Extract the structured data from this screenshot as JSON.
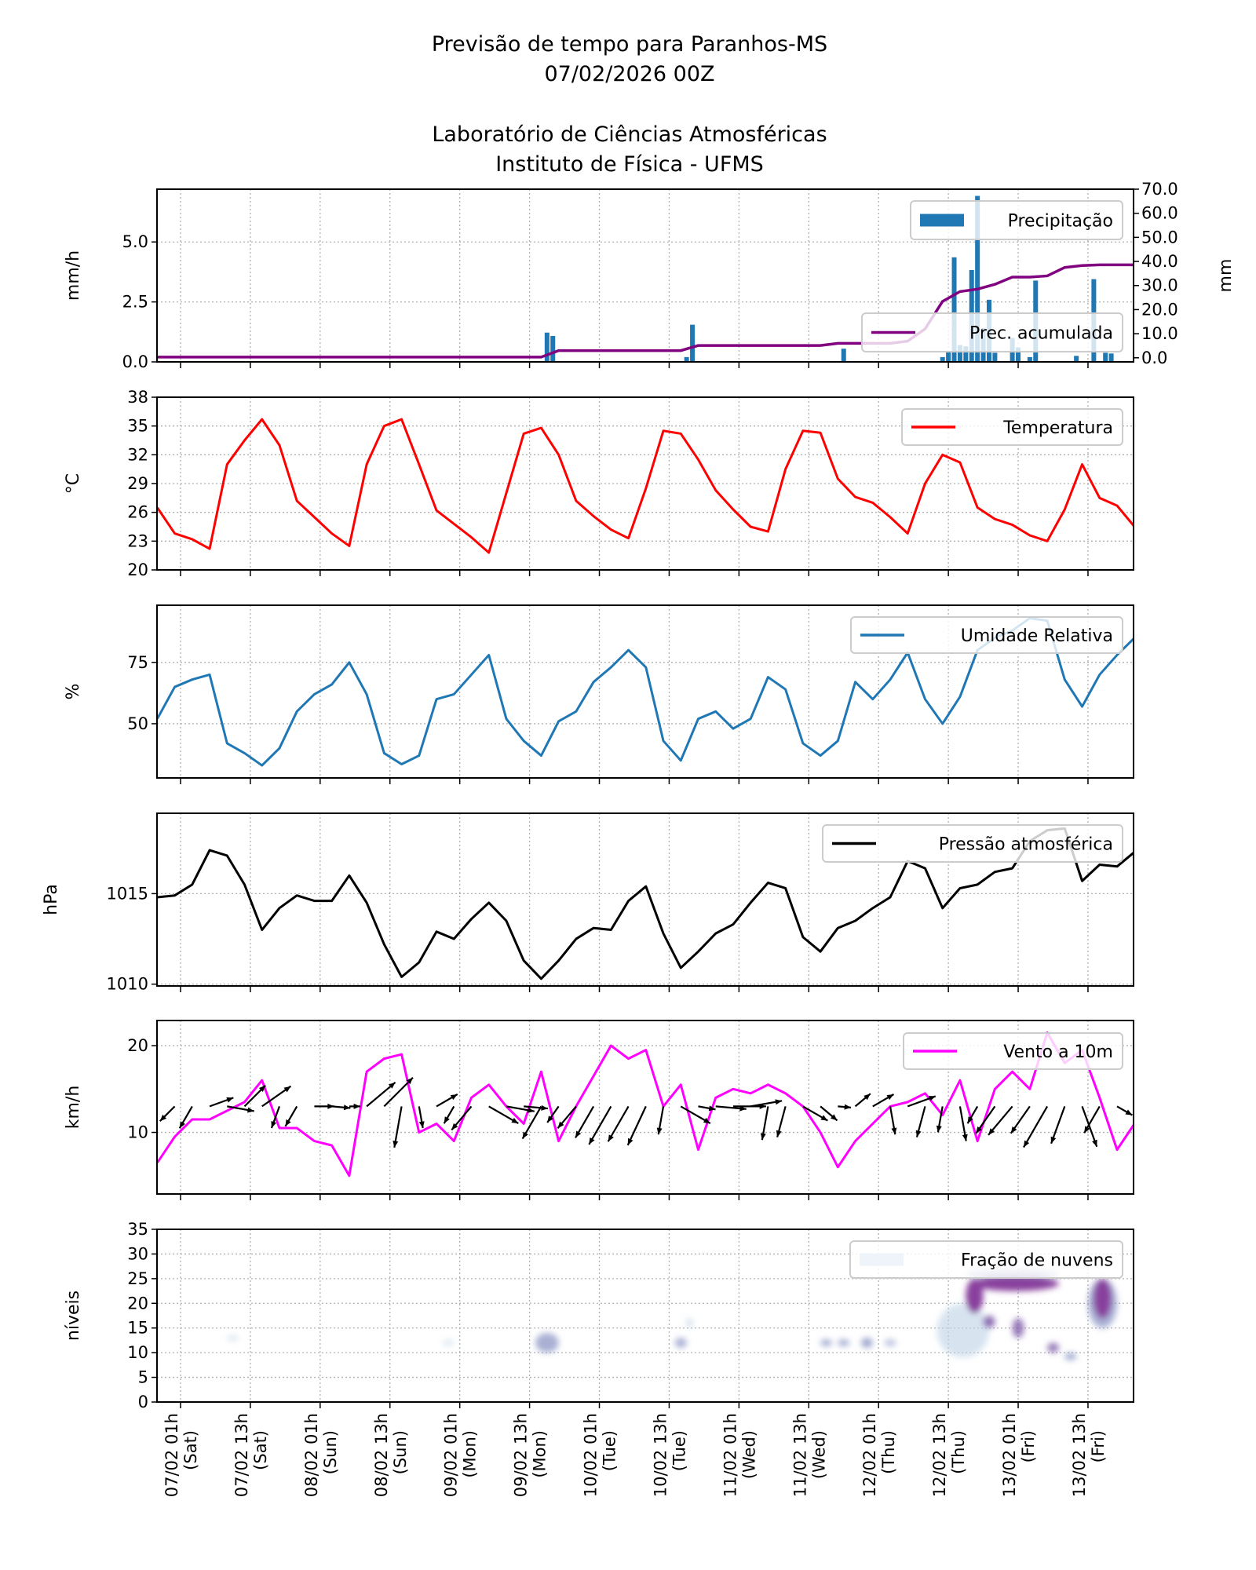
{
  "titles": [
    "Previsão de tempo para Paranhos-MS",
    "07/02/2026 00Z",
    "Laboratório de Ciências Atmosféricas",
    "Instituto de Física - UFMS"
  ],
  "chart_data": [
    {
      "type": "bar",
      "ylabel": "mm/h",
      "ylabel_right": "mm",
      "ylim": [
        0,
        7.2
      ],
      "ylim_right": [
        -1.7,
        70
      ],
      "yticks": [
        "0.0",
        "2.5",
        "5.0"
      ],
      "yticks_right": [
        "0.0",
        "10.0",
        "20.0",
        "30.0",
        "40.0",
        "50.0",
        "60.0",
        "70.0"
      ],
      "grid": true,
      "legend_placement": "upper-right",
      "series": [
        {
          "name": "Precipitação",
          "color": "#1f77b4",
          "kind": "bar",
          "points": [
            {
              "t": "09/02 16h",
              "v": 1.22
            },
            {
              "t": "09/02 17h",
              "v": 1.08
            },
            {
              "t": "10/02 16h",
              "v": 0.2
            },
            {
              "t": "10/02 17h",
              "v": 1.55
            },
            {
              "t": "11/02 19h",
              "v": 0.55
            },
            {
              "t": "12/02 12h",
              "v": 0.2
            },
            {
              "t": "12/02 13h",
              "v": 0.4
            },
            {
              "t": "12/02 14h",
              "v": 4.36
            },
            {
              "t": "12/02 15h",
              "v": 0.7
            },
            {
              "t": "12/02 16h",
              "v": 0.65
            },
            {
              "t": "12/02 17h",
              "v": 3.83
            },
            {
              "t": "12/02 18h",
              "v": 6.92
            },
            {
              "t": "12/02 19h",
              "v": 1.41
            },
            {
              "t": "12/02 20h",
              "v": 2.59
            },
            {
              "t": "12/02 21h",
              "v": 0.38
            },
            {
              "t": "13/02 00h",
              "v": 1.0
            },
            {
              "t": "13/02 01h",
              "v": 0.6
            },
            {
              "t": "13/02 03h",
              "v": 0.2
            },
            {
              "t": "13/02 04h",
              "v": 3.39
            },
            {
              "t": "13/02 11h",
              "v": 0.25
            },
            {
              "t": "13/02 14h",
              "v": 3.45
            },
            {
              "t": "13/02 16h",
              "v": 0.38
            },
            {
              "t": "13/02 17h",
              "v": 0.35
            }
          ]
        },
        {
          "name": "Prec. acumulada",
          "color": "#800080",
          "kind": "line",
          "axis": "right",
          "values": [
            0.3,
            0.3,
            0.3,
            0.3,
            0.3,
            0.3,
            0.3,
            0.3,
            0.3,
            0.3,
            0.3,
            0.3,
            0.3,
            0.3,
            0.3,
            0.3,
            0.3,
            0.3,
            0.3,
            0.3,
            0.3,
            0.3,
            0.3,
            3.0,
            3.0,
            3.0,
            3.0,
            3.0,
            3.0,
            3.0,
            3.0,
            5.1,
            5.1,
            5.1,
            5.1,
            5.1,
            5.1,
            5.1,
            5.1,
            6.0,
            6.0,
            6.0,
            6.0,
            6.9,
            12.0,
            23.4,
            27.5,
            28.5,
            30.5,
            33.5,
            33.5,
            34.0,
            37.5,
            38.3,
            38.6,
            38.6,
            38.6
          ]
        }
      ]
    },
    {
      "type": "line",
      "ylabel": "°C",
      "ylim": [
        20,
        38
      ],
      "yticks": [
        "20",
        "23",
        "26",
        "29",
        "32",
        "35",
        "38"
      ],
      "grid": true,
      "legend_placement": "upper-right",
      "series": [
        {
          "name": "Temperatura",
          "color": "#ff0000",
          "values": [
            26.5,
            23.8,
            23.2,
            22.2,
            31,
            33.5,
            35.7,
            33,
            27.2,
            25.5,
            23.8,
            22.5,
            31,
            35,
            35.7,
            31,
            26.2,
            24.8,
            23.4,
            21.8,
            28,
            34.2,
            34.8,
            32,
            27.2,
            25.6,
            24.2,
            23.3,
            28.5,
            34.5,
            34.2,
            31.5,
            28.3,
            26.3,
            24.5,
            24,
            30.5,
            34.5,
            34.3,
            29.5,
            27.6,
            27,
            25.5,
            23.8,
            29,
            32,
            31.2,
            26.5,
            25.3,
            24.7,
            23.6,
            23,
            26.3,
            31,
            27.5,
            26.7,
            24.5
          ]
        }
      ]
    },
    {
      "type": "line",
      "ylabel": "%",
      "ylim": [
        27.9,
        98.3
      ],
      "yticks": [
        "50",
        "75"
      ],
      "grid": true,
      "legend_placement": "upper-right",
      "series": [
        {
          "name": "Umidade Relativa",
          "color": "#1f77b4",
          "values": [
            52,
            65,
            68,
            70,
            42,
            38,
            33,
            40,
            55,
            62,
            66,
            75,
            62,
            38,
            33.5,
            37,
            60,
            62,
            70,
            78,
            52,
            43,
            37,
            51,
            55,
            67,
            73,
            80,
            73,
            43,
            35,
            52,
            55,
            48,
            52,
            69,
            64,
            42,
            37,
            43,
            67,
            60,
            68,
            79,
            60,
            50,
            61,
            80,
            85,
            88,
            93,
            92,
            68,
            57,
            70,
            78,
            85
          ]
        }
      ]
    },
    {
      "type": "line",
      "ylabel": "hPa",
      "ylim": [
        1009.9,
        1019.44
      ],
      "yticks": [
        "1010",
        "1015"
      ],
      "grid": true,
      "legend_placement": "upper-right",
      "series": [
        {
          "name": "Pressão atmosférica",
          "color": "#000000",
          "values": [
            1014.8,
            1014.9,
            1015.5,
            1017.4,
            1017.1,
            1015.5,
            1013,
            1014.2,
            1014.9,
            1014.6,
            1014.6,
            1016,
            1014.5,
            1012.2,
            1010.4,
            1011.2,
            1012.9,
            1012.5,
            1013.6,
            1014.5,
            1013.5,
            1011.3,
            1010.3,
            1011.3,
            1012.5,
            1013.1,
            1013,
            1014.6,
            1015.4,
            1012.8,
            1010.9,
            1011.8,
            1012.8,
            1013.3,
            1014.5,
            1015.6,
            1015.3,
            1012.6,
            1011.8,
            1013.1,
            1013.5,
            1014.2,
            1014.8,
            1016.8,
            1016.4,
            1014.2,
            1015.3,
            1015.5,
            1016.2,
            1016.4,
            1017.9,
            1018.5,
            1018.6,
            1015.7,
            1016.6,
            1016.5,
            1017.3
          ]
        }
      ]
    },
    {
      "type": "line",
      "ylabel": "km/h",
      "ylim": [
        2.9,
        22.9
      ],
      "yticks": [
        "10",
        "20"
      ],
      "grid": true,
      "legend_placement": "upper-right",
      "series": [
        {
          "name": "Vento a 10m",
          "color": "#ff00ff",
          "values": [
            6.5,
            9.5,
            11.5,
            11.5,
            12.5,
            13.5,
            16,
            10.5,
            10.5,
            9,
            8.5,
            5,
            17,
            18.5,
            19,
            10,
            11,
            9,
            14,
            15.5,
            13,
            11,
            17,
            9,
            13,
            16.5,
            20,
            18.5,
            19.5,
            13,
            15.5,
            8,
            14,
            15,
            14.5,
            15.5,
            14.5,
            13,
            10,
            6,
            9,
            11,
            13,
            13.5,
            14.5,
            12,
            16,
            9,
            15,
            17,
            15,
            21.5,
            18,
            19.5,
            14,
            8,
            11
          ]
        }
      ],
      "wind_direction_deg": [
        60,
        45,
        30,
        250,
        280,
        225,
        235,
        20,
        30,
        270,
        275,
        270,
        230,
        225,
        10,
        350,
        240,
        30,
        40,
        300,
        280,
        275,
        30,
        35,
        40,
        30,
        30,
        30,
        25,
        10,
        300,
        280,
        275,
        270,
        260,
        10,
        15,
        300,
        310,
        275,
        230,
        240,
        350,
        250,
        15,
        10,
        350,
        30,
        35,
        40,
        35,
        30,
        20,
        340,
        30,
        300,
        240
      ]
    },
    {
      "type": "heatmap",
      "ylabel": "níveis",
      "ylim": [
        0,
        35
      ],
      "yticks": [
        "0",
        "5",
        "10",
        "15",
        "20",
        "25",
        "30",
        "35"
      ],
      "grid": true,
      "legend_placement": "upper-right",
      "series": [
        {
          "name": "Fração de nuvens",
          "colormap": [
            "#f7fcfd",
            "#bfd3e6",
            "#8c96c6",
            "#88419d",
            "#4d004b"
          ]
        }
      ],
      "patches": [
        {
          "t0": "07/02 09h",
          "t1": "07/02 11h",
          "l0": 12.5,
          "l1": 13.5,
          "v": 0.12
        },
        {
          "t0": "08/02 22h",
          "t1": "09/02 00h",
          "l0": 11.5,
          "l1": 12.5,
          "v": 0.12
        },
        {
          "t0": "09/02 14h",
          "t1": "09/02 18h",
          "l0": 10,
          "l1": 14,
          "v": 0.35
        },
        {
          "t0": "10/02 14h",
          "t1": "10/02 16h",
          "l0": 11,
          "l1": 13,
          "v": 0.35
        },
        {
          "t0": "10/02 16h",
          "t1": "10/02 17h",
          "l0": 15,
          "l1": 17,
          "v": 0.2
        },
        {
          "t0": "11/02 15h",
          "t1": "11/02 17h",
          "l0": 11.5,
          "l1": 12.5,
          "v": 0.45
        },
        {
          "t0": "11/02 18h",
          "t1": "11/02 20h",
          "l0": 11.5,
          "l1": 12.5,
          "v": 0.45
        },
        {
          "t0": "11/02 22h",
          "t1": "12/02 00h",
          "l0": 11,
          "l1": 13,
          "v": 0.45
        },
        {
          "t0": "12/02 02h",
          "t1": "12/02 04h",
          "l0": 11.5,
          "l1": 12.5,
          "v": 0.25
        },
        {
          "t0": "12/02 11h",
          "t1": "12/02 20h",
          "l0": 9,
          "l1": 20,
          "v": 0.22
        },
        {
          "t0": "12/02 16h",
          "t1": "13/02 08h",
          "l0": 25,
          "l1": 27,
          "v": 0.3
        },
        {
          "t0": "12/02 17h",
          "t1": "13/02 08h",
          "l0": 22.5,
          "l1": 25.5,
          "v": 0.85
        },
        {
          "t0": "12/02 16h",
          "t1": "12/02 19h",
          "l0": 18,
          "l1": 25,
          "v": 0.8
        },
        {
          "t0": "12/02 19h",
          "t1": "12/02 21h",
          "l0": 15,
          "l1": 17.5,
          "v": 0.6
        },
        {
          "t0": "13/02 00h",
          "t1": "13/02 02h",
          "l0": 13,
          "l1": 17,
          "v": 0.5
        },
        {
          "t0": "13/02 06h",
          "t1": "13/02 08h",
          "l0": 10,
          "l1": 12,
          "v": 0.5
        },
        {
          "t0": "13/02 09h",
          "t1": "13/02 11h",
          "l0": 8.5,
          "l1": 10,
          "v": 0.4
        },
        {
          "t0": "13/02 13h",
          "t1": "13/02 18h",
          "l0": 15,
          "l1": 25,
          "v": 0.35
        },
        {
          "t0": "13/02 14h",
          "t1": "13/02 17h",
          "l0": 17,
          "l1": 25,
          "v": 0.85
        }
      ]
    }
  ],
  "time": [
    "06/02 21h",
    "07/02 00h",
    "07/02 03h",
    "07/02 06h",
    "07/02 09h",
    "07/02 12h",
    "07/02 15h",
    "07/02 18h",
    "07/02 21h",
    "08/02 00h",
    "08/02 03h",
    "08/02 06h",
    "08/02 09h",
    "08/02 12h",
    "08/02 15h",
    "08/02 18h",
    "08/02 21h",
    "09/02 00h",
    "09/02 03h",
    "09/02 06h",
    "09/02 09h",
    "09/02 12h",
    "09/02 15h",
    "09/02 18h",
    "09/02 21h",
    "10/02 00h",
    "10/02 03h",
    "10/02 06h",
    "10/02 09h",
    "10/02 12h",
    "10/02 15h",
    "10/02 18h",
    "10/02 21h",
    "11/02 00h",
    "11/02 03h",
    "11/02 06h",
    "11/02 09h",
    "11/02 12h",
    "11/02 15h",
    "11/02 18h",
    "11/02 21h",
    "12/02 00h",
    "12/02 03h",
    "12/02 06h",
    "12/02 09h",
    "12/02 12h",
    "12/02 15h",
    "12/02 18h",
    "12/02 21h",
    "13/02 00h",
    "13/02 03h",
    "13/02 06h",
    "13/02 09h",
    "13/02 12h",
    "13/02 15h",
    "13/02 18h",
    "13/02 21h"
  ],
  "xticks": [
    {
      "t": "07/02 01h",
      "day": "(Sat)"
    },
    {
      "t": "07/02 13h",
      "day": "(Sat)"
    },
    {
      "t": "08/02 01h",
      "day": "(Sun)"
    },
    {
      "t": "08/02 13h",
      "day": "(Sun)"
    },
    {
      "t": "09/02 01h",
      "day": "(Mon)"
    },
    {
      "t": "09/02 13h",
      "day": "(Mon)"
    },
    {
      "t": "10/02 01h",
      "day": "(Tue)"
    },
    {
      "t": "10/02 13h",
      "day": "(Tue)"
    },
    {
      "t": "11/02 01h",
      "day": "(Wed)"
    },
    {
      "t": "11/02 13h",
      "day": "(Wed)"
    },
    {
      "t": "12/02 01h",
      "day": "(Thu)"
    },
    {
      "t": "12/02 13h",
      "day": "(Thu)"
    },
    {
      "t": "13/02 01h",
      "day": "(Fri)"
    },
    {
      "t": "13/02 13h",
      "day": "(Fri)"
    }
  ]
}
